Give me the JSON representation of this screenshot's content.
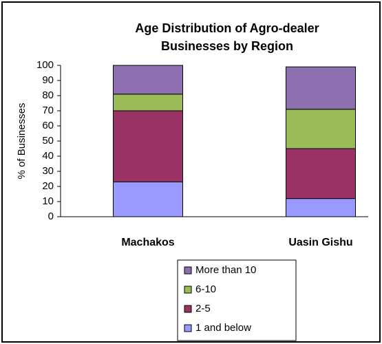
{
  "chart_data": {
    "type": "stacked_bar",
    "title": [
      "Age Distribution of Agro-dealer",
      "Businesses by Region"
    ],
    "y_label": "% of Businesses",
    "categories": [
      "Machakos",
      "Uasin Gishu"
    ],
    "series": [
      {
        "name": "1 and below",
        "color": "#9999ff",
        "values": [
          23,
          12
        ]
      },
      {
        "name": "2-5",
        "color": "#993366",
        "values": [
          47,
          33
        ]
      },
      {
        "name": "6-10",
        "color": "#9bbb59",
        "values": [
          11,
          26
        ]
      },
      {
        "name": "More than 10",
        "color": "#8e6fb0",
        "values": [
          19,
          28
        ]
      }
    ],
    "ylim": [
      0,
      100
    ],
    "yticks": [
      0,
      10,
      20,
      30,
      40,
      50,
      60,
      70,
      80,
      90,
      100
    ],
    "legend": "bottom"
  }
}
